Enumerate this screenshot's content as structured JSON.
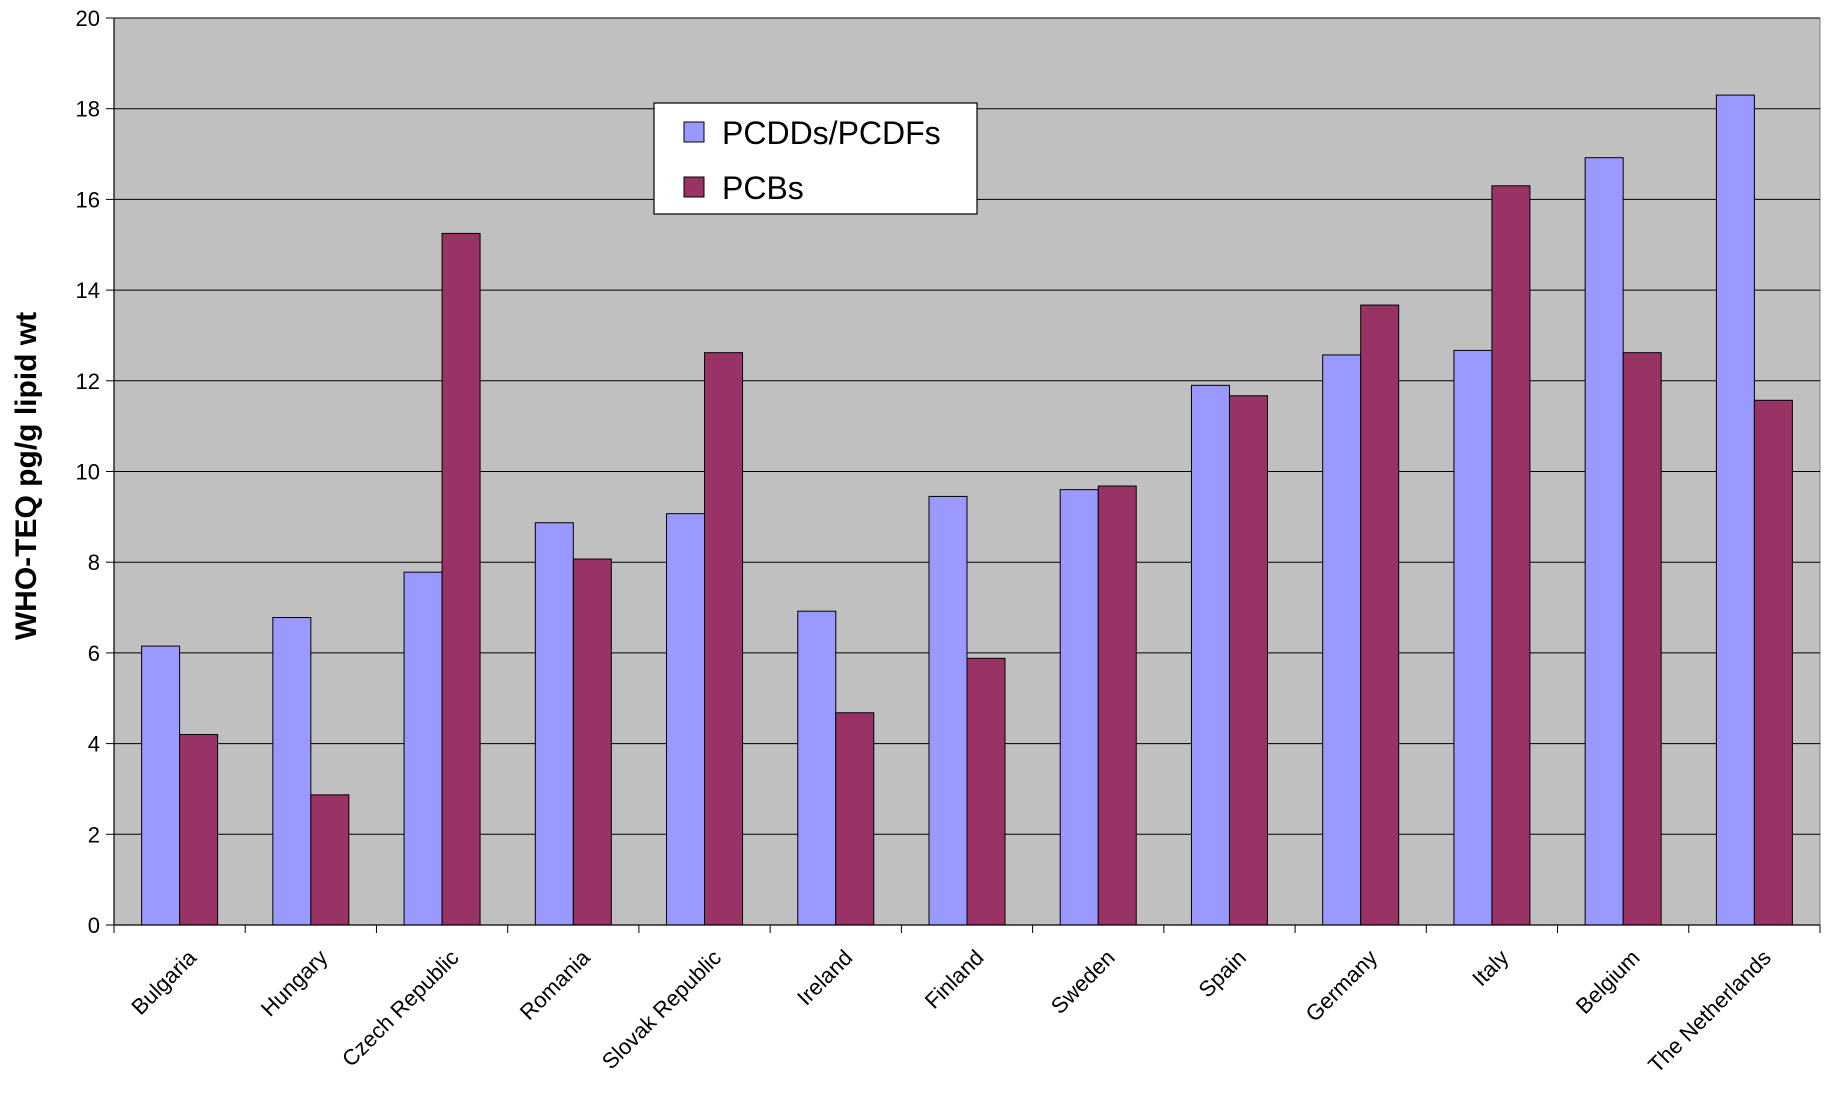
{
  "chart_data": {
    "type": "bar",
    "title": "",
    "xlabel": "",
    "ylabel": "WHO-TEQ pg/g lipid wt",
    "ylim": [
      0,
      20
    ],
    "yticks": [
      0,
      2,
      4,
      6,
      8,
      10,
      12,
      14,
      16,
      18,
      20
    ],
    "grid": true,
    "legend_position": "top-center",
    "plot_background": "#c0c0c0",
    "categories": [
      "Bulgaria",
      "Hungary",
      "Czech Republic",
      "Romania",
      "Slovak Republic",
      "Ireland",
      "Finland",
      "Sweden",
      "Spain",
      "Germany",
      "Italy",
      "Belgium",
      "The Netherlands"
    ],
    "series": [
      {
        "name": "PCDDs/PCDFs",
        "color": "#9999ff",
        "values": [
          6.15,
          6.78,
          7.78,
          8.87,
          9.07,
          6.92,
          9.45,
          9.6,
          11.9,
          12.57,
          12.67,
          16.92,
          18.3
        ]
      },
      {
        "name": "PCBs",
        "color": "#993366",
        "values": [
          4.2,
          2.87,
          15.25,
          8.07,
          12.62,
          4.68,
          5.88,
          9.68,
          11.67,
          13.67,
          16.3,
          12.62,
          11.57
        ]
      }
    ]
  }
}
